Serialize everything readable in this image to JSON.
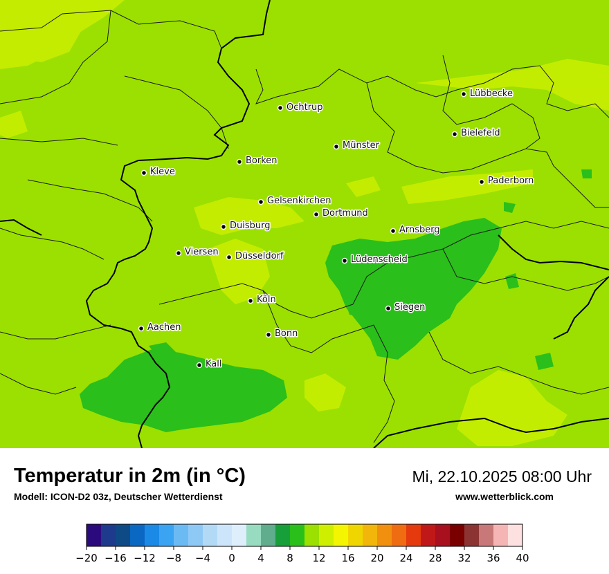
{
  "map": {
    "cities": [
      {
        "name": "Lübbecke"
      },
      {
        "name": "Ochtrup"
      },
      {
        "name": "Bielefeld"
      },
      {
        "name": "Münster"
      },
      {
        "name": "Borken"
      },
      {
        "name": "Kleve"
      },
      {
        "name": "Paderborn"
      },
      {
        "name": "Gelsenkirchen"
      },
      {
        "name": "Dortmund"
      },
      {
        "name": "Duisburg"
      },
      {
        "name": "Arnsberg"
      },
      {
        "name": "Viersen"
      },
      {
        "name": "Düsseldorf"
      },
      {
        "name": "Lüdenscheid"
      },
      {
        "name": "Köln"
      },
      {
        "name": "Siegen"
      },
      {
        "name": "Aachen"
      },
      {
        "name": "Bonn"
      },
      {
        "name": "Kall"
      }
    ]
  },
  "footer": {
    "title": "Temperatur in 2m (in °C)",
    "subtitle": "Modell: ICON-D2 03z, Deutscher Wetterdienst",
    "datetime": "Mi, 22.10.2025 08:00 Uhr",
    "website": "www.wetterblick.com"
  },
  "colorbar": {
    "min": -20,
    "max": 40,
    "colors": [
      "#2b0a7e",
      "#1d3a8c",
      "#0e4a86",
      "#0b68c2",
      "#1a8ae6",
      "#3aa3f2",
      "#6cbaf4",
      "#8ec9f5",
      "#b2daf7",
      "#cde5fa",
      "#deeefb",
      "#97dcc0",
      "#5fad8c",
      "#17a03a",
      "#2abf1a",
      "#9be000",
      "#cef000",
      "#f3f600",
      "#f0d600",
      "#f2b60a",
      "#f0900e",
      "#ef6c12",
      "#e43a0e",
      "#c01818",
      "#a80f1f",
      "#7a0000",
      "#8c3434",
      "#c87878",
      "#f5b5b5",
      "#fde0e0"
    ],
    "tick_labels": [
      "−20",
      "−16",
      "−12",
      "−8",
      "−4",
      "0",
      "4",
      "8",
      "12",
      "16",
      "20",
      "24",
      "28",
      "32",
      "36",
      "40"
    ]
  }
}
